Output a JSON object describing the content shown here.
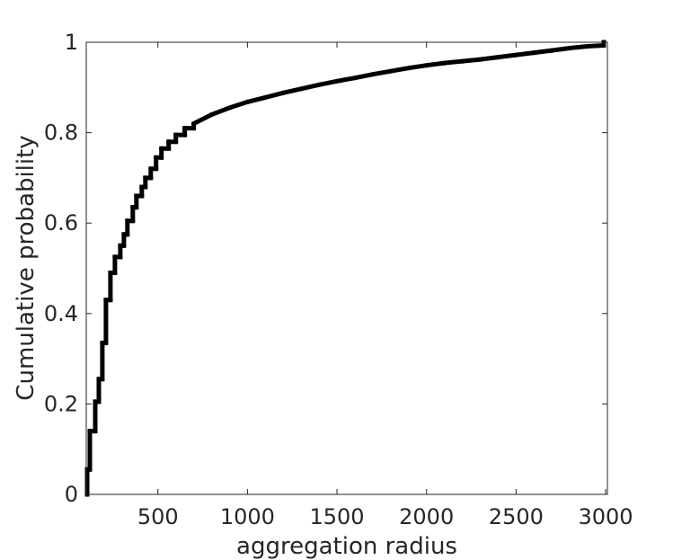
{
  "chart_data": {
    "type": "line",
    "subtype": "empirical-cdf",
    "title": "",
    "xlabel": "aggregation radius",
    "ylabel": "Cumulative probability",
    "xlim": [
      100,
      3010
    ],
    "ylim": [
      0,
      1
    ],
    "xticks": [
      500,
      1000,
      1500,
      2000,
      2500,
      3000
    ],
    "yticks": [
      0,
      0.2,
      0.4,
      0.6,
      0.8,
      1
    ],
    "xtick_labels": [
      "500",
      "1000",
      "1500",
      "2000",
      "2500",
      "3000"
    ],
    "ytick_labels": [
      "0",
      "0.2",
      "0.4",
      "0.6",
      "0.8",
      "1"
    ],
    "grid": false,
    "legend": "none",
    "line_color": "#000000",
    "series": [
      {
        "x": [
          105,
          105,
          120,
          120,
          150,
          150,
          170,
          170,
          190,
          190,
          210,
          210,
          235,
          235,
          260,
          260,
          290,
          290,
          310,
          310,
          330,
          330,
          360,
          360,
          380,
          380,
          410,
          410,
          430,
          430,
          460,
          460,
          490,
          490,
          520,
          520,
          560,
          560,
          600,
          600,
          650,
          650,
          700,
          700,
          800,
          900,
          1000,
          1100,
          1200,
          1300,
          1400,
          1500,
          1600,
          1700,
          1800,
          1900,
          2000,
          2100,
          2200,
          2300,
          2400,
          2500,
          2600,
          2700,
          2800,
          2900,
          2990,
          2990
        ],
        "y": [
          0,
          0.055,
          0.055,
          0.14,
          0.14,
          0.205,
          0.205,
          0.255,
          0.255,
          0.335,
          0.335,
          0.43,
          0.43,
          0.49,
          0.49,
          0.525,
          0.525,
          0.55,
          0.55,
          0.575,
          0.575,
          0.605,
          0.605,
          0.635,
          0.635,
          0.66,
          0.66,
          0.68,
          0.68,
          0.7,
          0.7,
          0.72,
          0.72,
          0.745,
          0.745,
          0.765,
          0.765,
          0.78,
          0.78,
          0.795,
          0.795,
          0.81,
          0.81,
          0.82,
          0.84,
          0.855,
          0.868,
          0.878,
          0.888,
          0.897,
          0.906,
          0.914,
          0.921,
          0.929,
          0.936,
          0.943,
          0.949,
          0.954,
          0.958,
          0.962,
          0.967,
          0.972,
          0.977,
          0.982,
          0.987,
          0.991,
          0.993,
          1.0
        ]
      }
    ]
  }
}
